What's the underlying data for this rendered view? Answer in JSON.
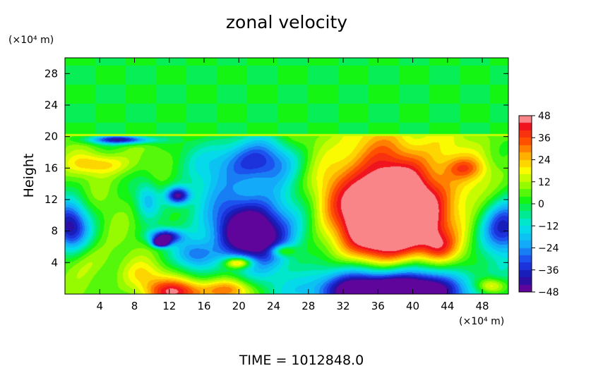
{
  "chart_data": {
    "type": "heatmap",
    "title": "zonal velocity",
    "ylabel": "Height",
    "y_unit": "(×10⁴ m)",
    "x_unit": "(×10⁴ m)",
    "footer": "TIME = 1012848.0",
    "xlim": [
      0,
      51
    ],
    "ylim": [
      0,
      30
    ],
    "x_ticks": [
      "4",
      "8",
      "12",
      "16",
      "20",
      "24",
      "28",
      "32",
      "36",
      "40",
      "44",
      "48"
    ],
    "y_ticks": [
      "4",
      "8",
      "12",
      "16",
      "20",
      "24",
      "28"
    ],
    "colorbar": {
      "range": [
        -48,
        48
      ],
      "ticks": [
        "48",
        "36",
        "24",
        "12",
        "0",
        "−12",
        "−24",
        "−36",
        "−48"
      ]
    },
    "background_levels": {
      "stratosphere": 0,
      "troposphere": 6
    },
    "tropopause_height": 20.3,
    "features": [
      {
        "x": 37.5,
        "y": 9.5,
        "rx": 5.5,
        "ry": 5.5,
        "value": 48
      },
      {
        "x": 37.5,
        "y": 11,
        "rx": 9,
        "ry": 9.5,
        "value": 32
      },
      {
        "x": 36,
        "y": 13,
        "rx": 11,
        "ry": 9,
        "value": 20
      },
      {
        "x": 37.5,
        "y": 0.3,
        "rx": 9,
        "ry": 2.8,
        "value": -48
      },
      {
        "x": 37.5,
        "y": 0.8,
        "rx": 11,
        "ry": 4,
        "value": -28
      },
      {
        "x": 22,
        "y": 7.5,
        "rx": 5,
        "ry": 4,
        "value": -42
      },
      {
        "x": 21,
        "y": 11,
        "rx": 8,
        "ry": 8,
        "value": -22
      },
      {
        "x": 22,
        "y": 17,
        "rx": 6,
        "ry": 3,
        "value": -22
      },
      {
        "x": 13,
        "y": 0.3,
        "rx": 4,
        "ry": 1.8,
        "value": 44
      },
      {
        "x": 19,
        "y": 0.5,
        "rx": 3,
        "ry": 1.5,
        "value": 30
      },
      {
        "x": 20,
        "y": 4,
        "rx": 1.8,
        "ry": 0.8,
        "value": 44
      },
      {
        "x": 25,
        "y": 5.5,
        "rx": 1.5,
        "ry": 0.8,
        "value": 32
      },
      {
        "x": 0.5,
        "y": 8.5,
        "rx": 2.5,
        "ry": 3.5,
        "value": -42
      },
      {
        "x": 50.5,
        "y": 8.5,
        "rx": 3,
        "ry": 4,
        "value": -44
      },
      {
        "x": 11.5,
        "y": 7.3,
        "rx": 2,
        "ry": 1,
        "value": -40
      },
      {
        "x": 11,
        "y": 6.5,
        "rx": 1,
        "ry": 0.6,
        "value": -48
      },
      {
        "x": 13,
        "y": 12.5,
        "rx": 1.5,
        "ry": 1.2,
        "value": -40
      },
      {
        "x": 6.5,
        "y": 19.6,
        "rx": 4,
        "ry": 0.6,
        "value": -40
      },
      {
        "x": 4,
        "y": 16.5,
        "rx": 4,
        "ry": 1.5,
        "value": 24
      },
      {
        "x": 9,
        "y": 2.5,
        "rx": 3,
        "ry": 2,
        "value": 18
      },
      {
        "x": 3,
        "y": 4.5,
        "rx": 3,
        "ry": 2.5,
        "value": 14
      },
      {
        "x": 49,
        "y": 1,
        "rx": 2,
        "ry": 1.2,
        "value": 34
      },
      {
        "x": 46,
        "y": 16,
        "rx": 2.5,
        "ry": 1.5,
        "value": 22
      },
      {
        "x": 43,
        "y": 6,
        "rx": 2,
        "ry": 2,
        "value": 22
      },
      {
        "x": 15,
        "y": 5,
        "rx": 2.5,
        "ry": 2,
        "value": -18
      },
      {
        "x": 9.5,
        "y": 12,
        "rx": 1.5,
        "ry": 2.5,
        "value": -14
      }
    ]
  }
}
